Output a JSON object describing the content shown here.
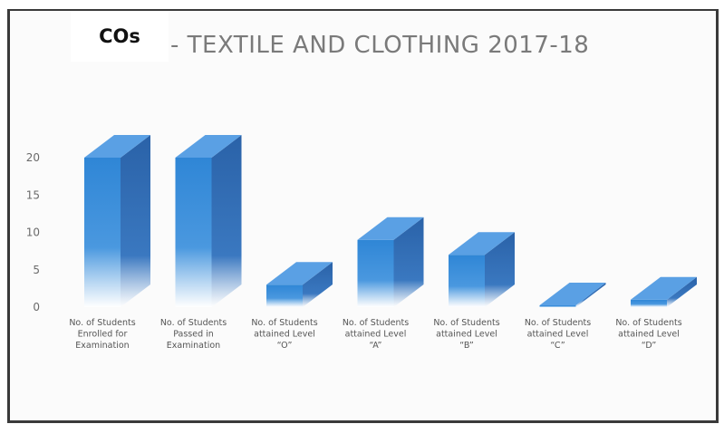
{
  "label_box": {
    "text": "COs"
  },
  "chart_data": {
    "type": "bar",
    "title": "- TEXTILE AND CLOTHING 2017-18",
    "xlabel": "",
    "ylabel": "",
    "ylim": [
      0,
      20
    ],
    "yticks": [
      0,
      5,
      10,
      15,
      20
    ],
    "grid": false,
    "categories": [
      [
        "No. of Students",
        "Enrolled for",
        "Examination"
      ],
      [
        "No. of Students",
        "Passed in",
        "Examination"
      ],
      [
        "No. of Students",
        "attained Level",
        "“O”"
      ],
      [
        "No. of Students",
        "attained Level",
        "“A”"
      ],
      [
        "No. of Students",
        "attained Level",
        "“B”"
      ],
      [
        "No. of Students",
        "attained Level",
        "“C”"
      ],
      [
        "No. of Students",
        "attained Level",
        "“D”"
      ]
    ],
    "values": [
      20,
      20,
      3,
      9,
      7,
      0,
      1
    ],
    "colors": {
      "front": "#2f86d6",
      "side": "#2a62a8",
      "top": "#5aa0e4"
    }
  }
}
